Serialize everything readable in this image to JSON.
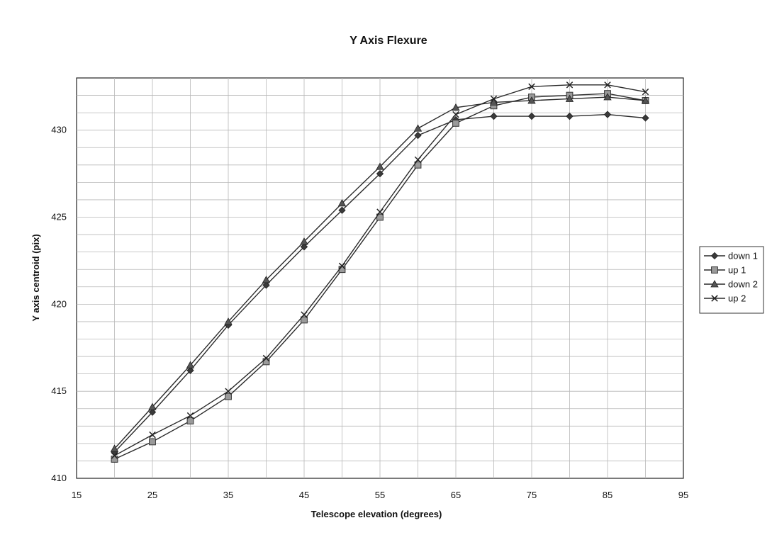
{
  "chart_data": {
    "type": "line",
    "title": "Y Axis Flexure",
    "xlabel": "Telescope elevation (degrees)",
    "ylabel": "Y axis centroid (pix)",
    "xlim": [
      15,
      95
    ],
    "ylim": [
      410,
      433
    ],
    "x_ticks": [
      15,
      25,
      35,
      45,
      55,
      65,
      75,
      85,
      95
    ],
    "y_ticks": [
      410,
      415,
      420,
      425,
      430
    ],
    "grid": true,
    "legend_position": "right",
    "x": [
      20,
      25,
      30,
      35,
      40,
      45,
      50,
      55,
      60,
      65,
      70,
      75,
      80,
      85,
      90
    ],
    "series": [
      {
        "name": "down 1",
        "marker": "diamond",
        "values": [
          411.5,
          413.8,
          416.2,
          418.8,
          421.1,
          423.3,
          425.4,
          427.5,
          429.7,
          430.6,
          430.8,
          430.8,
          430.8,
          430.9,
          430.7
        ]
      },
      {
        "name": "up 1",
        "marker": "square",
        "values": [
          411.1,
          412.1,
          413.3,
          414.7,
          416.7,
          419.1,
          422.0,
          425.0,
          428.0,
          430.4,
          431.4,
          431.9,
          432.0,
          432.1,
          431.7
        ]
      },
      {
        "name": "down 2",
        "marker": "triangle",
        "values": [
          411.7,
          414.1,
          416.5,
          419.0,
          421.4,
          423.6,
          425.8,
          427.9,
          430.1,
          431.3,
          431.6,
          431.7,
          431.8,
          431.9,
          431.7
        ]
      },
      {
        "name": "up 2",
        "marker": "x",
        "values": [
          411.3,
          412.5,
          413.6,
          415.0,
          416.9,
          419.4,
          422.2,
          425.3,
          428.3,
          430.9,
          431.8,
          432.5,
          432.6,
          432.6,
          432.2
        ]
      }
    ]
  }
}
